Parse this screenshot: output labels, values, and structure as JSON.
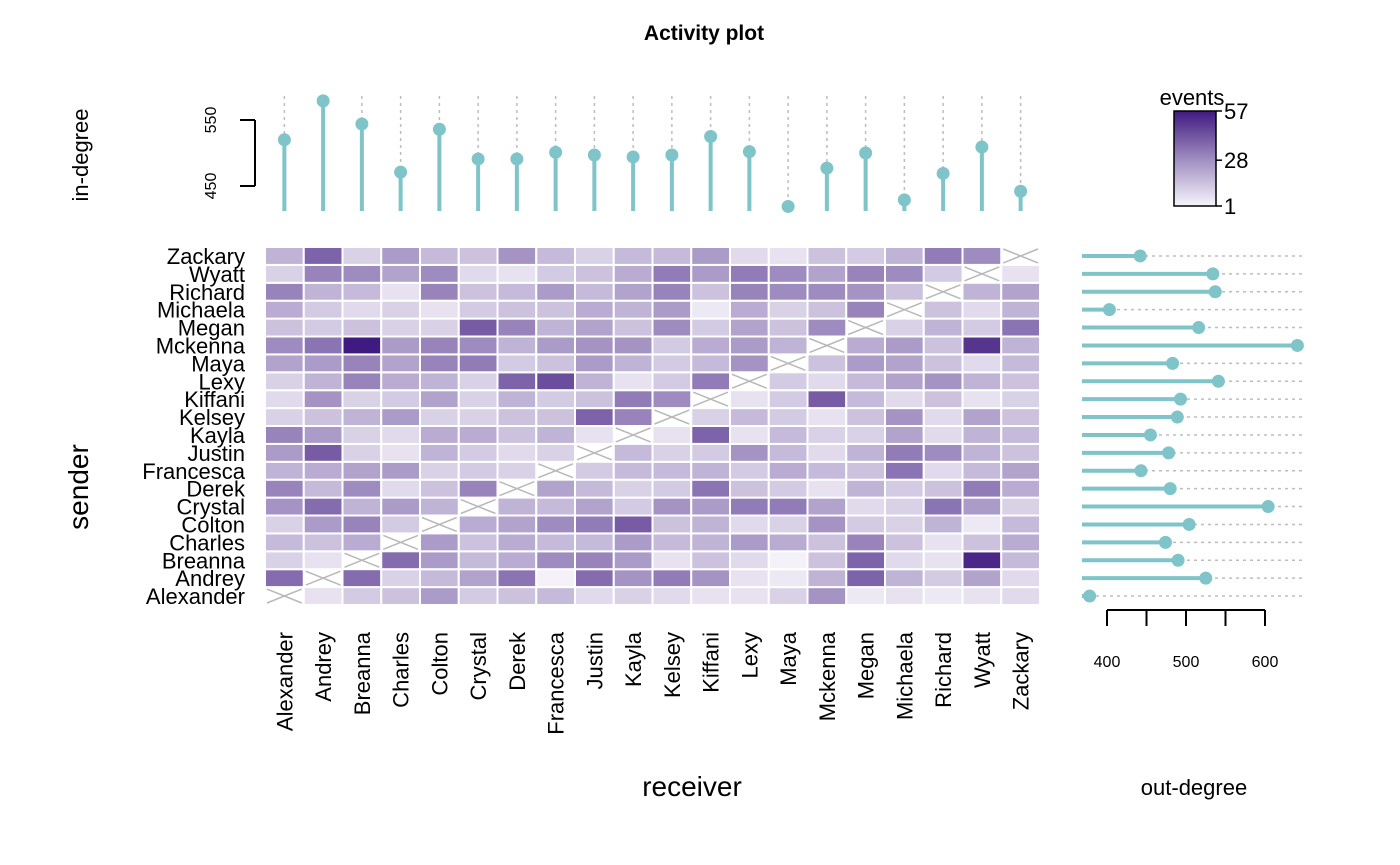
{
  "chart_data": {
    "type": "heatmap",
    "title": "Activity plot",
    "xlabel": "receiver",
    "ylabel": "sender",
    "names": [
      "Alexander",
      "Andrey",
      "Breanna",
      "Charles",
      "Colton",
      "Crystal",
      "Derek",
      "Francesca",
      "Justin",
      "Kayla",
      "Kelsey",
      "Kiffani",
      "Lexy",
      "Maya",
      "Mckenna",
      "Megan",
      "Michaela",
      "Richard",
      "Wyatt",
      "Zackary"
    ],
    "legend": {
      "title": "events",
      "min": 1,
      "mid": 28,
      "max": 57,
      "ticks": [
        "57",
        "28",
        "1"
      ],
      "low_color": "#f7f5fb",
      "high_color": "#3f1a80"
    },
    "in_degree": {
      "label": "in-degree",
      "ticks": [
        450,
        550
      ],
      "values": [
        520,
        579,
        544,
        471,
        536,
        491,
        491,
        501,
        497,
        494,
        497,
        525,
        502,
        419,
        477,
        500,
        429,
        469,
        509,
        442
      ]
    },
    "out_degree": {
      "label": "out-degree",
      "ticks": [
        400,
        500,
        600
      ],
      "values": [
        378,
        525,
        490,
        474,
        504,
        604,
        480,
        443,
        478,
        455,
        489,
        493,
        541,
        483,
        641,
        516,
        403,
        537,
        534,
        442
      ]
    },
    "matrix_rows_sender_from_alexander": [
      [
        null,
        6,
        12,
        14,
        24,
        12,
        14,
        16,
        8,
        10,
        8,
        6,
        6,
        10,
        26,
        4,
        6,
        4,
        6,
        8
      ],
      [
        36,
        null,
        36,
        10,
        16,
        22,
        34,
        2,
        36,
        26,
        32,
        26,
        6,
        4,
        18,
        38,
        18,
        12,
        22,
        8
      ],
      [
        10,
        6,
        null,
        36,
        24,
        16,
        20,
        28,
        30,
        24,
        6,
        14,
        8,
        2,
        14,
        38,
        8,
        6,
        54,
        16
      ],
      [
        16,
        14,
        20,
        null,
        24,
        14,
        20,
        16,
        16,
        24,
        16,
        18,
        24,
        20,
        14,
        30,
        14,
        6,
        14,
        20
      ],
      [
        10,
        24,
        30,
        12,
        null,
        20,
        22,
        28,
        32,
        40,
        14,
        18,
        8,
        10,
        26,
        12,
        10,
        18,
        4,
        16
      ],
      [
        26,
        36,
        18,
        24,
        18,
        null,
        18,
        16,
        22,
        12,
        26,
        24,
        32,
        32,
        22,
        8,
        10,
        34,
        24,
        10
      ],
      [
        30,
        16,
        28,
        8,
        14,
        30,
        null,
        22,
        16,
        10,
        12,
        34,
        14,
        12,
        6,
        18,
        12,
        14,
        32,
        20
      ],
      [
        18,
        20,
        22,
        24,
        10,
        12,
        10,
        null,
        12,
        16,
        16,
        18,
        12,
        20,
        16,
        14,
        34,
        8,
        16,
        22
      ],
      [
        24,
        40,
        10,
        6,
        18,
        12,
        8,
        10,
        null,
        16,
        10,
        12,
        26,
        16,
        8,
        18,
        32,
        28,
        18,
        14
      ],
      [
        30,
        24,
        10,
        8,
        20,
        20,
        14,
        18,
        6,
        null,
        6,
        38,
        6,
        16,
        10,
        10,
        22,
        8,
        18,
        16
      ],
      [
        10,
        14,
        18,
        24,
        10,
        10,
        14,
        14,
        38,
        30,
        null,
        10,
        16,
        12,
        6,
        14,
        26,
        8,
        22,
        14
      ],
      [
        8,
        26,
        10,
        12,
        22,
        10,
        18,
        12,
        14,
        32,
        28,
        null,
        6,
        12,
        40,
        16,
        8,
        14,
        6,
        10
      ],
      [
        10,
        18,
        30,
        20,
        18,
        10,
        38,
        44,
        18,
        6,
        12,
        32,
        null,
        12,
        8,
        16,
        22,
        26,
        18,
        14
      ],
      [
        22,
        24,
        30,
        22,
        30,
        32,
        12,
        14,
        24,
        18,
        12,
        16,
        26,
        null,
        14,
        24,
        22,
        14,
        8,
        16
      ],
      [
        28,
        34,
        57,
        24,
        30,
        28,
        18,
        24,
        26,
        26,
        12,
        20,
        24,
        18,
        null,
        20,
        24,
        14,
        50,
        18
      ],
      [
        14,
        12,
        14,
        10,
        10,
        40,
        30,
        18,
        22,
        14,
        28,
        12,
        22,
        14,
        28,
        null,
        10,
        18,
        12,
        34
      ],
      [
        20,
        12,
        8,
        10,
        6,
        12,
        14,
        14,
        20,
        18,
        24,
        4,
        20,
        10,
        14,
        30,
        null,
        14,
        8,
        18
      ],
      [
        30,
        18,
        16,
        6,
        30,
        14,
        16,
        24,
        16,
        22,
        30,
        14,
        30,
        28,
        28,
        26,
        14,
        null,
        18,
        22
      ],
      [
        10,
        30,
        28,
        22,
        28,
        8,
        6,
        12,
        14,
        20,
        32,
        24,
        32,
        28,
        22,
        30,
        28,
        12,
        null,
        6
      ],
      [
        18,
        38,
        10,
        24,
        16,
        14,
        26,
        16,
        10,
        16,
        16,
        24,
        8,
        6,
        14,
        12,
        18,
        32,
        28,
        null
      ]
    ]
  }
}
